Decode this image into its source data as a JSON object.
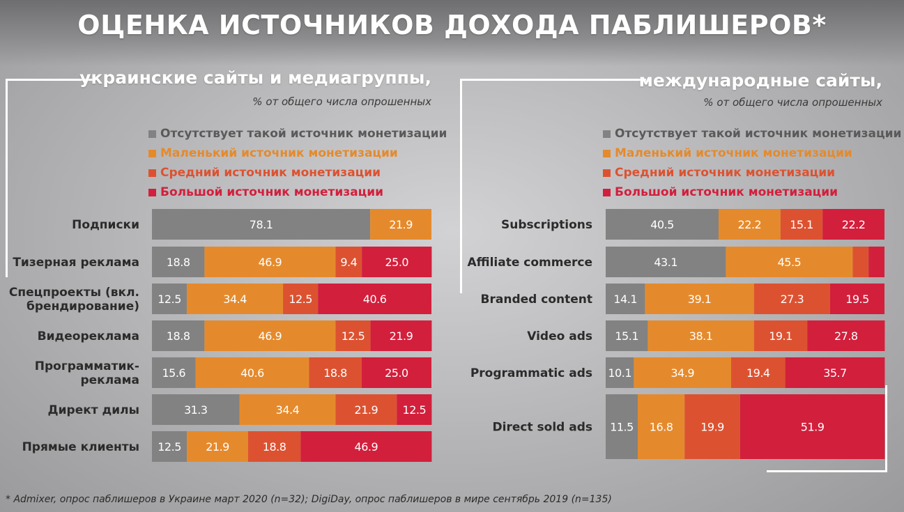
{
  "title": "ОЦЕНКА ИСТОЧНИКОВ ДОХОДА ПАБЛИШЕРОВ*",
  "footnote": "* Admixer, опрос паблишеров в Украине март 2020 (n=32); DigiDay, опрос паблишеров в мире сентябрь 2019 (n=135)",
  "colors": {
    "none": "#828282",
    "small": "#e58a2c",
    "medium": "#dc5231",
    "large": "#d21f3c"
  },
  "panels": [
    {
      "title": "украинские сайты и медиагруппы,",
      "subtitle": "% от общего числа опрошенных",
      "legend": [
        {
          "label": "Отсутствует такой источник монетизации",
          "color": "#828282",
          "text_color": "#5a5a5a"
        },
        {
          "label": "Маленький источник монетизации",
          "color": "#e58a2c",
          "text_color": "#e58a2c"
        },
        {
          "label": "Средний источник монетизации",
          "color": "#dc5231",
          "text_color": "#dc5231"
        },
        {
          "label": "Большой источник монетизации",
          "color": "#d21f3c",
          "text_color": "#d21f3c"
        }
      ]
    },
    {
      "title": "международные сайты,",
      "subtitle": "% от общего числа опрошенных",
      "legend": [
        {
          "label": "Отсутствует такой источник монетизации",
          "color": "#828282",
          "text_color": "#5a5a5a"
        },
        {
          "label": "Маленький источник монетизации",
          "color": "#e58a2c",
          "text_color": "#e58a2c"
        },
        {
          "label": "Средний источник монетизации",
          "color": "#dc5231",
          "text_color": "#dc5231"
        },
        {
          "label": "Большой источник монетизации",
          "color": "#d21f3c",
          "text_color": "#d21f3c"
        }
      ]
    }
  ],
  "chart_data": [
    {
      "type": "bar",
      "orientation": "horizontal",
      "stacked": true,
      "categories": [
        "Подписки",
        "Тизерная реклама",
        "Спецпроекты (вкл. брендирование)",
        "Видеореклама",
        "Программатик-реклама",
        "Директ дилы",
        "Прямые клиенты"
      ],
      "category_lines": [
        [
          "Подписки"
        ],
        [
          "Тизерная реклама"
        ],
        [
          "Спецпроекты (вкл.",
          "брендирование)"
        ],
        [
          "Видеореклама"
        ],
        [
          "Программатик-",
          "реклама"
        ],
        [
          "Директ дилы"
        ],
        [
          "Прямые клиенты"
        ]
      ],
      "series": [
        {
          "name": "Отсутствует такой источник монетизации",
          "values": [
            78.1,
            18.8,
            12.5,
            18.8,
            15.6,
            31.3,
            12.5
          ]
        },
        {
          "name": "Маленький источник монетизации",
          "values": [
            21.9,
            46.9,
            34.4,
            46.9,
            40.6,
            34.4,
            21.9
          ]
        },
        {
          "name": "Средний источник монетизации",
          "values": [
            0,
            9.4,
            12.5,
            12.5,
            18.8,
            21.9,
            18.8
          ]
        },
        {
          "name": "Большой источник монетизации",
          "values": [
            0,
            25.0,
            40.6,
            21.9,
            25.0,
            12.5,
            46.9
          ]
        }
      ],
      "labels": [
        [
          "78.1",
          "21.9",
          "",
          ""
        ],
        [
          "18.8",
          "46.9",
          "9.4",
          "25.0"
        ],
        [
          "12.5",
          "34.4",
          "12.5",
          "40.6"
        ],
        [
          "18.8",
          "46.9",
          "12.5",
          "21.9"
        ],
        [
          "15.6",
          "40.6",
          "18.8",
          "25.0"
        ],
        [
          "31.3",
          "34.4",
          "21.9",
          "12.5"
        ],
        [
          "12.5",
          "21.9",
          "18.8",
          "46.9"
        ]
      ],
      "xlim": [
        0,
        100
      ],
      "grid": false,
      "legend_position": "top"
    },
    {
      "type": "bar",
      "orientation": "horizontal",
      "stacked": true,
      "categories": [
        "Subscriptions",
        "Affiliate commerce",
        "Branded content",
        "Video ads",
        "Programmatic ads",
        "Direct sold ads"
      ],
      "category_lines": [
        [
          "Subscriptions"
        ],
        [
          "Affiliate commerce"
        ],
        [
          "Branded content"
        ],
        [
          "Video ads"
        ],
        [
          "Programmatic ads"
        ],
        [
          "Direct sold ads"
        ]
      ],
      "series": [
        {
          "name": "Отсутствует такой источник монетизации",
          "values": [
            40.5,
            43.1,
            14.1,
            15.1,
            10.1,
            11.5
          ]
        },
        {
          "name": "Маленький источник монетизации",
          "values": [
            22.2,
            45.5,
            39.1,
            38.1,
            34.9,
            16.8
          ]
        },
        {
          "name": "Средний источник монетизации",
          "values": [
            15.1,
            5.7,
            27.3,
            19.1,
            19.4,
            19.9
          ]
        },
        {
          "name": "Большой источник монетизации",
          "values": [
            22.2,
            5.7,
            19.5,
            27.8,
            35.7,
            51.9
          ]
        }
      ],
      "labels": [
        [
          "40.5",
          "22.2",
          "15.1",
          "22.2"
        ],
        [
          "43.1",
          "45.5",
          "",
          ""
        ],
        [
          "14.1",
          "39.1",
          "27.3",
          "19.5"
        ],
        [
          "15.1",
          "38.1",
          "19.1",
          "27.8"
        ],
        [
          "10.1",
          "34.9",
          "19.4",
          "35.7"
        ],
        [
          "11.5",
          "16.8",
          "19.9",
          "51.9"
        ]
      ],
      "xlim": [
        0,
        100
      ],
      "grid": false,
      "legend_position": "top"
    }
  ]
}
